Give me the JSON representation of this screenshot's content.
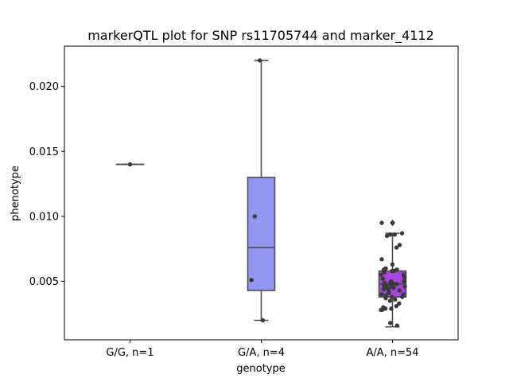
{
  "chart_data": {
    "type": "boxplot",
    "title": "markerQTL plot for SNP rs11705744 and marker_4112",
    "xlabel": "genotype",
    "ylabel": "phenotype",
    "ylim": [
      0.0005,
      0.0231
    ],
    "yticks": [
      0.005,
      0.01,
      0.015,
      0.02
    ],
    "ytick_labels": [
      "0.005",
      "0.010",
      "0.015",
      "0.020"
    ],
    "grid": false,
    "categories": [
      "G/G, n=1",
      "G/A, n=4",
      "A/A, n=54"
    ],
    "boxes": [
      {
        "category": "G/G, n=1",
        "color": "#4c4ce6",
        "min": 0.014,
        "q1": 0.014,
        "median": 0.014,
        "q3": 0.014,
        "max": 0.014,
        "outliers": []
      },
      {
        "category": "G/A, n=4",
        "color": "#9494f2",
        "min": 0.002,
        "q1": 0.0043,
        "median": 0.0076,
        "q3": 0.013,
        "max": 0.022,
        "outliers": []
      },
      {
        "category": "A/A, n=54",
        "color": "#a745e0",
        "min": 0.0015,
        "q1": 0.0038,
        "median": 0.0048,
        "q3": 0.0058,
        "max": 0.0087,
        "outliers": [
          0.0095
        ]
      }
    ],
    "points": [
      {
        "category": "G/G, n=1",
        "values": [
          0.014
        ]
      },
      {
        "category": "G/A, n=4",
        "values": [
          0.002,
          0.0051,
          0.01,
          0.022
        ]
      },
      {
        "category": "A/A, n=54",
        "values": [
          0.0095,
          0.0095,
          0.0087,
          0.0086,
          0.0086,
          0.0085,
          0.0078,
          0.0076,
          0.0067,
          0.0063,
          0.006,
          0.0059,
          0.0059,
          0.0058,
          0.0058,
          0.0057,
          0.0055,
          0.0055,
          0.0053,
          0.0052,
          0.005,
          0.005,
          0.0049,
          0.0049,
          0.0048,
          0.0048,
          0.0047,
          0.0047,
          0.0046,
          0.0046,
          0.0045,
          0.0045,
          0.0044,
          0.0044,
          0.0043,
          0.0042,
          0.0041,
          0.004,
          0.004,
          0.0039,
          0.0038,
          0.0038,
          0.0037,
          0.0036,
          0.0035,
          0.0033,
          0.0031,
          0.003,
          0.0029,
          0.0029,
          0.0028,
          0.0028,
          0.0018,
          0.0016
        ]
      }
    ],
    "point_color": "#3a3a3a",
    "line_color": "#4d4d4d"
  }
}
